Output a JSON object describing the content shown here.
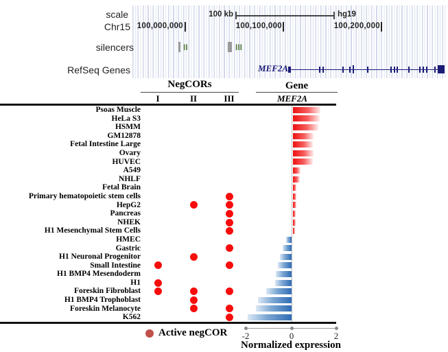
{
  "colors": {
    "active_dot_red": "#f70c0c",
    "bar_positive_red": "#ed1111",
    "bar_negative_blue": "#2f6cb4",
    "legend_dot_brick": "#c0504a",
    "silencer_label_green": "#5c8044",
    "silencer_bar_gray": "#9a9a9a",
    "gene_navy": "#1b1b78"
  },
  "browser": {
    "scale_track_label": "scale",
    "scale_bar_length": "100 kb",
    "assembly": "hg19",
    "chromosome": "Chr15",
    "coordinates": [
      "100,000,000",
      "100,100,000",
      "100,200,000"
    ],
    "silencers_track_label": "silencers",
    "silencer_regions": [
      "II",
      "III"
    ],
    "refseq_track_label": "RefSeq Genes",
    "gene_name": "MEF2A"
  },
  "header": {
    "group_negcors": "NegCORs",
    "group_gene": "Gene"
  },
  "legend": {
    "active_negcor": "Active negCOR"
  },
  "axis": {
    "tick_labels": [
      "-2",
      "0",
      "2"
    ],
    "title": "Normalized expression"
  },
  "chart_data": {
    "type": "bar",
    "orientation": "horizontal",
    "xlabel": "Normalized expression",
    "xlim": [
      -2,
      2
    ],
    "x_ticks": [
      -2,
      0,
      2
    ],
    "negcor_columns": [
      "I",
      "II",
      "III"
    ],
    "gene_column": "MEF2A",
    "rows": [
      {
        "label": "Psoas Muscle",
        "expression": 1.22,
        "active_negcors": []
      },
      {
        "label": "HeLa S3",
        "expression": 1.18,
        "active_negcors": []
      },
      {
        "label": "HSMM",
        "expression": 1.12,
        "active_negcors": []
      },
      {
        "label": "GM12878",
        "expression": 0.91,
        "active_negcors": []
      },
      {
        "label": "Fetal Intestine Large",
        "expression": 0.88,
        "active_negcors": []
      },
      {
        "label": "Ovary",
        "expression": 0.9,
        "active_negcors": []
      },
      {
        "label": "HUVEC",
        "expression": 0.87,
        "active_negcors": []
      },
      {
        "label": "A549",
        "expression": 0.33,
        "active_negcors": []
      },
      {
        "label": "NHLF",
        "expression": 0.3,
        "active_negcors": []
      },
      {
        "label": "Fetal Brain",
        "expression": 0.14,
        "active_negcors": []
      },
      {
        "label": "Primary hematopoietic stem cells",
        "expression": 0.14,
        "active_negcors": [
          "III"
        ]
      },
      {
        "label": "HepG2",
        "expression": 0.14,
        "active_negcors": [
          "II",
          "III"
        ]
      },
      {
        "label": "Pancreas",
        "expression": 0.13,
        "active_negcors": [
          "III"
        ]
      },
      {
        "label": "NHEK",
        "expression": 0.12,
        "active_negcors": [
          "III"
        ]
      },
      {
        "label": "H1 Mesenchymal Stem Cells",
        "expression": 0.1,
        "active_negcors": [
          "III"
        ]
      },
      {
        "label": "HMEC",
        "expression": -0.25,
        "active_negcors": []
      },
      {
        "label": "Gastric",
        "expression": -0.4,
        "active_negcors": [
          "III"
        ]
      },
      {
        "label": "H1 Neuronal Progenitor",
        "expression": -0.52,
        "active_negcors": [
          "II"
        ]
      },
      {
        "label": "Small Intestine",
        "expression": -0.61,
        "active_negcors": [
          "I",
          "III"
        ]
      },
      {
        "label": "H1 BMP4 Mesendoderm",
        "expression": -0.7,
        "active_negcors": []
      },
      {
        "label": "H1",
        "expression": -0.72,
        "active_negcors": [
          "I"
        ]
      },
      {
        "label": "Foreskin Fibroblast",
        "expression": -1.12,
        "active_negcors": [
          "I",
          "II",
          "III"
        ]
      },
      {
        "label": "H1 BMP4 Trophoblast",
        "expression": -1.48,
        "active_negcors": [
          "II"
        ]
      },
      {
        "label": "Foreskin Melanocyte",
        "expression": -1.58,
        "active_negcors": [
          "II",
          "III"
        ]
      },
      {
        "label": "K562",
        "expression": -1.93,
        "active_negcors": [
          "III"
        ]
      }
    ]
  }
}
